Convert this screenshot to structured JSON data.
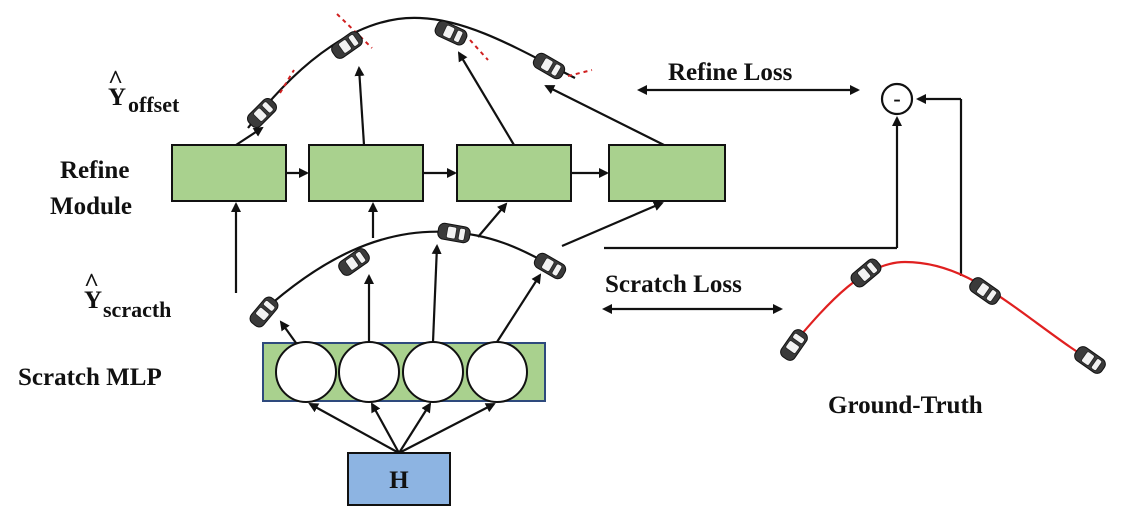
{
  "labels": {
    "y_offset_symbol": "Y",
    "y_offset_sub": "offset",
    "refine_module_line1": "Refine",
    "refine_module_line2": "Module",
    "y_scratch_symbol": "Y",
    "y_scratch_sub": "scracth",
    "scratch_mlp": "Scratch MLP",
    "refine_loss": "Refine Loss",
    "scratch_loss": "Scratch Loss",
    "ground_truth": "Ground-Truth",
    "hidden": "H",
    "minus": "-",
    "hat": "^"
  },
  "colors": {
    "module_fill": "#a9d18e",
    "hidden_fill": "#8db4e2",
    "ground_truth_line": "#e02020"
  },
  "icons": {
    "car": "car-icon",
    "subtract": "minus-circle-icon"
  }
}
